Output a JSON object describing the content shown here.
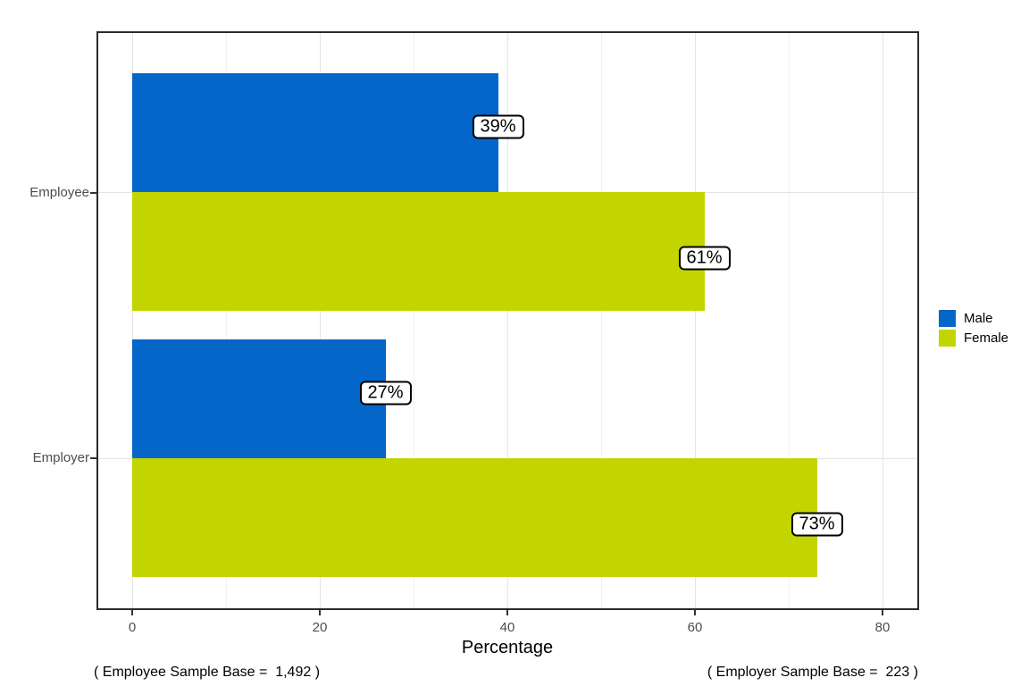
{
  "chart_data": {
    "type": "bar",
    "orientation": "horizontal",
    "categories": [
      "Employee",
      "Employer"
    ],
    "series": [
      {
        "name": "Male",
        "color": "#0366c8",
        "values": [
          39,
          27
        ]
      },
      {
        "name": "Female",
        "color": "#c3d500",
        "values": [
          61,
          73
        ]
      }
    ],
    "value_labels": [
      [
        "39%",
        "27%"
      ],
      [
        "61%",
        "73%"
      ]
    ],
    "xlabel": "Percentage",
    "x_ticks": [
      "0",
      "20",
      "40",
      "60",
      "80"
    ],
    "x_tick_values": [
      0,
      20,
      40,
      60,
      80
    ],
    "x_minor_values": [
      10,
      30,
      50,
      70
    ],
    "xlim": [
      -3.8,
      83.9
    ],
    "grid": "light gray vertical major+minor, horizontal major at categories",
    "legend_position": "right"
  },
  "captions": {
    "left": "( Employee Sample Base =  1,492 )",
    "right": "( Employer Sample Base =  223 )"
  },
  "colors": {
    "male_bar": "#0366c8",
    "female_bar": "#c3d500",
    "axis_text": "#4d4d4d",
    "grid_major": "#e4e4e4",
    "grid_minor": "#f1f1f1",
    "panel_border": "#2b2b2b",
    "label_box_border": "#000000"
  }
}
